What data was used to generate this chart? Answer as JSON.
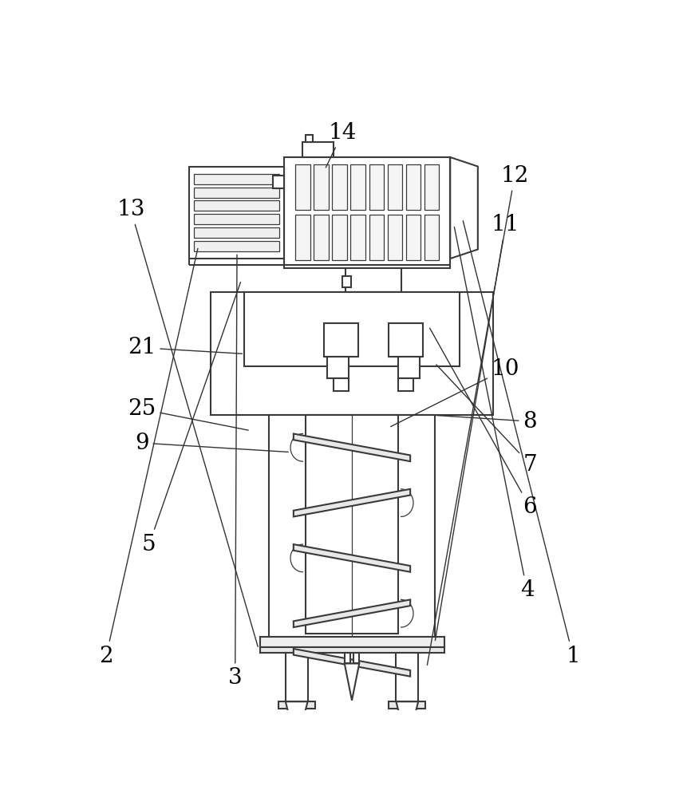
{
  "bg_color": "#ffffff",
  "line_color": "#3a3a3a",
  "line_width": 1.5,
  "thin_line": 0.9,
  "label_fontsize": 20
}
